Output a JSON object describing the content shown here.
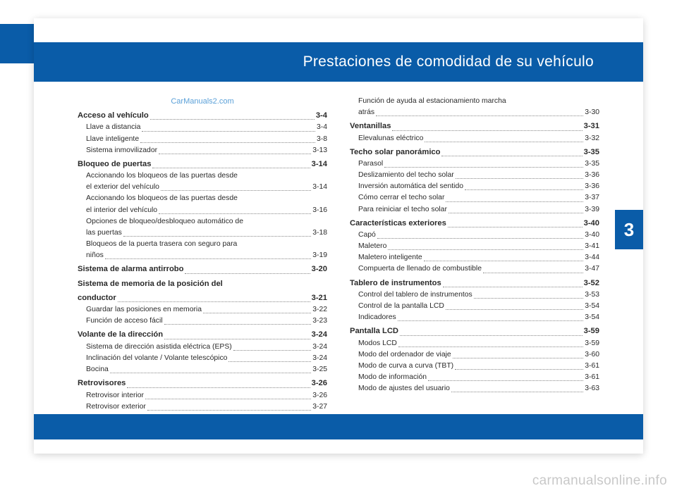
{
  "title": "Prestaciones de comodidad de su vehículo",
  "chapter": "3",
  "watermark_top": "CarManuals2.com",
  "footer_watermark": "carmanualsonline.info",
  "toc": {
    "left": [
      {
        "t": "section",
        "label": "Acceso al vehículo",
        "page": "3-4"
      },
      {
        "t": "sub",
        "label": "Llave a distancia",
        "page": "3-4"
      },
      {
        "t": "sub",
        "label": "Llave inteligente",
        "page": "3-8"
      },
      {
        "t": "sub",
        "label": "Sistema inmovilizador",
        "page": "3-13"
      },
      {
        "t": "section",
        "label": "Bloqueo de puertas",
        "page": "3-14"
      },
      {
        "t": "wrap",
        "label": "Accionando los bloqueos de las puertas desde"
      },
      {
        "t": "sub",
        "label": "el exterior del vehículo",
        "page": "3-14"
      },
      {
        "t": "wrap",
        "label": "Accionando los bloqueos de las puertas desde"
      },
      {
        "t": "sub",
        "label": "el interior del vehículo",
        "page": "3-16"
      },
      {
        "t": "wrap",
        "label": "Opciones de bloqueo/desbloqueo automático de"
      },
      {
        "t": "sub",
        "label": "las puertas",
        "page": "3-18"
      },
      {
        "t": "wrap",
        "label": "Bloqueos de la puerta trasera con seguro para"
      },
      {
        "t": "sub",
        "label": "niños",
        "page": "3-19"
      },
      {
        "t": "section",
        "label": "Sistema de alarma antirrobo",
        "page": "3-20"
      },
      {
        "t": "sectionwrap",
        "label": "Sistema de memoria de la posición del"
      },
      {
        "t": "section",
        "label": "conductor",
        "page": "3-21"
      },
      {
        "t": "sub",
        "label": "Guardar las posiciones en memoria",
        "page": "3-22"
      },
      {
        "t": "sub",
        "label": "Función de acceso fácil",
        "page": "3-23"
      },
      {
        "t": "section",
        "label": "Volante de la dirección",
        "page": "3-24"
      },
      {
        "t": "sub",
        "label": "Sistema de dirección asistida eléctrica (EPS)",
        "page": "3-24"
      },
      {
        "t": "sub",
        "label": "Inclinación del volante / Volante telescópico",
        "page": "3-24"
      },
      {
        "t": "sub",
        "label": "Bocina",
        "page": "3-25"
      },
      {
        "t": "section",
        "label": "Retrovisores",
        "page": "3-26"
      },
      {
        "t": "sub",
        "label": "Retrovisor interior",
        "page": "3-26"
      },
      {
        "t": "sub",
        "label": "Retrovisor exterior",
        "page": "3-27"
      }
    ],
    "right": [
      {
        "t": "wrap",
        "label": "Función de ayuda al estacionamiento marcha"
      },
      {
        "t": "sub",
        "label": "atrás",
        "page": "3-30"
      },
      {
        "t": "section",
        "label": "Ventanillas",
        "page": "3-31"
      },
      {
        "t": "sub",
        "label": "Elevalunas eléctrico",
        "page": "3-32"
      },
      {
        "t": "section",
        "label": "Techo solar panorámico",
        "page": "3-35"
      },
      {
        "t": "sub",
        "label": "Parasol",
        "page": "3-35"
      },
      {
        "t": "sub",
        "label": "Deslizamiento del techo solar",
        "page": "3-36"
      },
      {
        "t": "sub",
        "label": "Inversión automática del sentido",
        "page": "3-36"
      },
      {
        "t": "sub",
        "label": "Cómo cerrar el techo solar",
        "page": "3-37"
      },
      {
        "t": "sub",
        "label": "Para reiniciar el techo solar",
        "page": "3-39"
      },
      {
        "t": "section",
        "label": "Características exteriores",
        "page": "3-40"
      },
      {
        "t": "sub",
        "label": "Capó",
        "page": "3-40"
      },
      {
        "t": "sub",
        "label": "Maletero",
        "page": "3-41"
      },
      {
        "t": "sub",
        "label": "Maletero inteligente",
        "page": "3-44"
      },
      {
        "t": "sub",
        "label": "Compuerta de llenado de combustible",
        "page": "3-47"
      },
      {
        "t": "section",
        "label": "Tablero de instrumentos",
        "page": "3-52"
      },
      {
        "t": "sub",
        "label": "Control del tablero de instrumentos",
        "page": "3-53"
      },
      {
        "t": "sub",
        "label": "Control de la pantalla LCD",
        "page": "3-54"
      },
      {
        "t": "sub",
        "label": "Indicadores",
        "page": "3-54"
      },
      {
        "t": "section",
        "label": "Pantalla LCD",
        "page": "3-59"
      },
      {
        "t": "sub",
        "label": "Modos LCD",
        "page": "3-59"
      },
      {
        "t": "sub",
        "label": "Modo del ordenador de viaje",
        "page": "3-60"
      },
      {
        "t": "sub",
        "label": "Modo de curva a curva (TBT)",
        "page": "3-61"
      },
      {
        "t": "sub",
        "label": "Modo de información",
        "page": "3-61"
      },
      {
        "t": "sub",
        "label": "Modo de ajustes del usuario",
        "page": "3-63"
      }
    ]
  }
}
